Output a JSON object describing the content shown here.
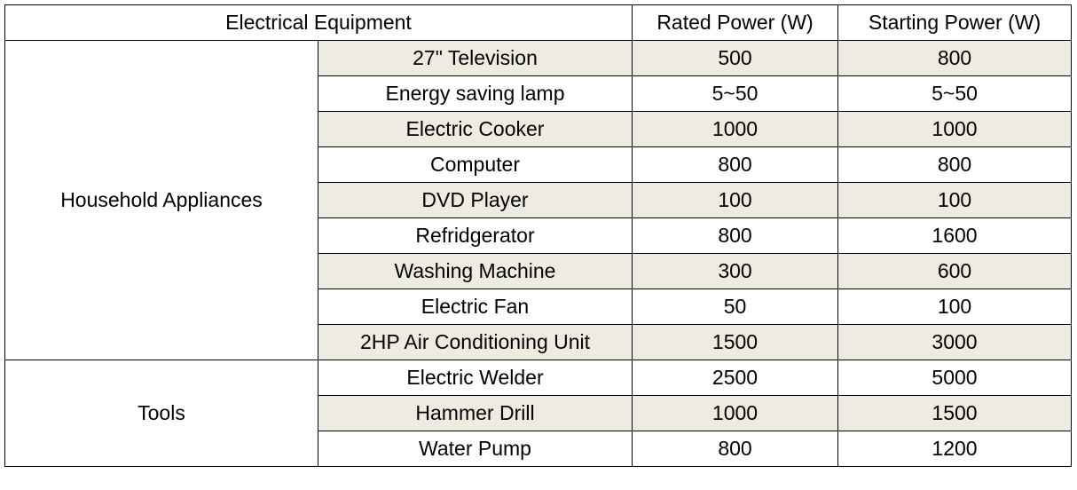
{
  "header": [
    "Electrical Equipment",
    "Rated Power (W)",
    "Starting Power (W)"
  ],
  "groups": [
    {
      "name": "Household Appliances",
      "rows": [
        [
          "27\" Television",
          500,
          800
        ],
        [
          "Energy saving lamp",
          "5~50",
          "5~50"
        ],
        [
          "Electric Cooker",
          1000,
          1000
        ],
        [
          "Computer",
          800,
          800
        ],
        [
          "DVD Player",
          100,
          100
        ],
        [
          "Refridgerator",
          800,
          1600
        ],
        [
          "Washing Machine",
          300,
          600
        ],
        [
          "Electric Fan",
          50,
          100
        ],
        [
          "2HP Air Conditioning Unit",
          1500,
          3000
        ]
      ]
    },
    {
      "name": "Tools",
      "rows": [
        [
          "Electric Welder",
          2500,
          5000
        ],
        [
          "Hammer Drill",
          1000,
          1500
        ],
        [
          "Water Pump",
          800,
          1200
        ]
      ]
    }
  ]
}
